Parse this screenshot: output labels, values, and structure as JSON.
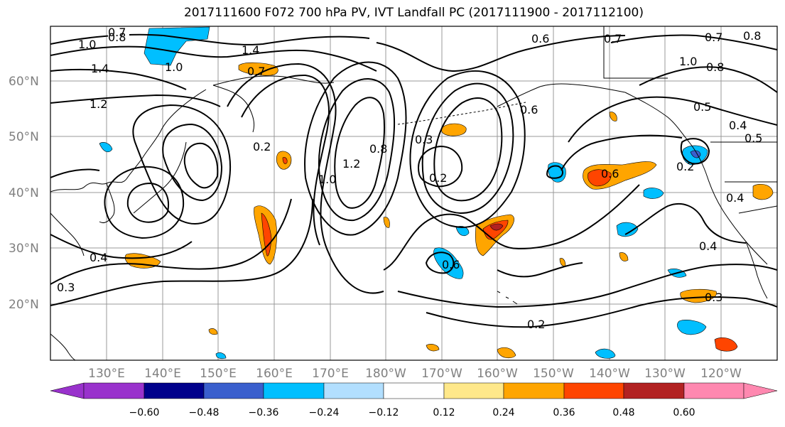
{
  "title": "2017111600 F072 700 hPa PV, IVT Landfall PC (2017111900 - 2017112100)",
  "latitude_labels": [
    "60°N",
    "50°N",
    "40°N",
    "30°N",
    "20°N"
  ],
  "longitude_labels": [
    "130°E",
    "140°E",
    "150°E",
    "160°E",
    "170°E",
    "180°W",
    "170°W",
    "160°W",
    "150°W",
    "140°W",
    "130°W",
    "120°W"
  ],
  "contour_labels": [
    "0.7",
    "0.8",
    "1.0",
    "1.4",
    "1.2",
    "1.4",
    "1.0",
    "0.7",
    "0.2",
    "1.0",
    "1.2",
    "0.8",
    "0.3",
    "0.2",
    "0.6",
    "0.6",
    "0.7",
    "1.0",
    "0.8",
    "0.5",
    "0.4",
    "0.6",
    "0.2",
    "0.4",
    "0.3",
    "0.3",
    "0.4",
    "0.2",
    "0.6",
    "0.4",
    "0.5",
    "0.7",
    "0.8"
  ],
  "colorbar": {
    "tick_labels": [
      "−0.60",
      "−0.48",
      "−0.36",
      "−0.24",
      "−0.12",
      "0.12",
      "0.24",
      "0.36",
      "0.48",
      "0.60"
    ],
    "colors": [
      "#9932cc",
      "#00008b",
      "#3a5fcd",
      "#00bfff",
      "#b2dfff",
      "#ffffff",
      "#ffe88a",
      "#ffa500",
      "#ff4500",
      "#b22222",
      "#ff88b0"
    ]
  },
  "colors": {
    "gridline": "#999999",
    "contour": "#000000",
    "coastline": "#000000",
    "axis_label": "#808080"
  }
}
